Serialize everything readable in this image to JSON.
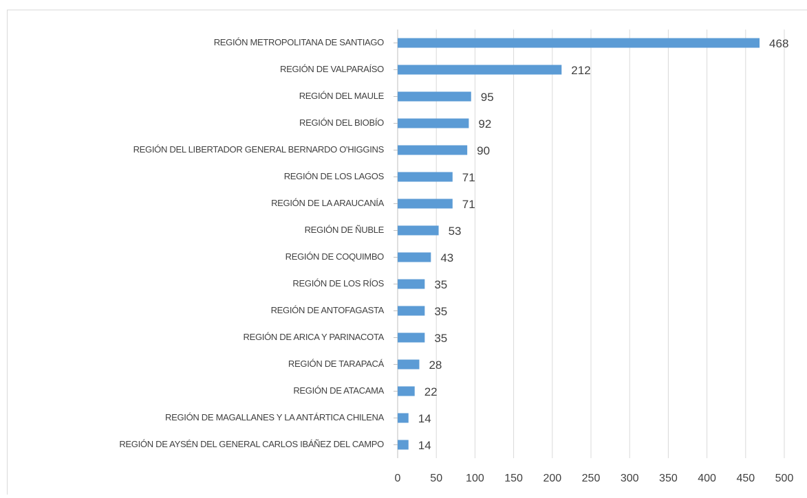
{
  "chart_data": {
    "type": "bar",
    "orientation": "horizontal",
    "categories": [
      "REGIÓN METROPOLITANA DE SANTIAGO",
      "REGIÓN DE VALPARAÍSO",
      "REGIÓN DEL MAULE",
      "REGIÓN DEL BIOBÍO",
      "REGIÓN DEL LIBERTADOR GENERAL BERNARDO O'HIGGINS",
      "REGIÓN DE LOS LAGOS",
      "REGIÓN DE LA ARAUCANÍA",
      "REGIÓN DE ÑUBLE",
      "REGIÓN DE COQUIMBO",
      "REGIÓN DE LOS RÍOS",
      "REGIÓN DE ANTOFAGASTA",
      "REGIÓN DE ARICA Y PARINACOTA",
      "REGIÓN DE TARAPACÁ",
      "REGIÓN DE ATACAMA",
      "REGIÓN DE MAGALLANES Y LA ANTÁRTICA CHILENA",
      "REGIÓN DE AYSÉN DEL GENERAL CARLOS IBÁÑEZ DEL CAMPO"
    ],
    "values": [
      468,
      212,
      95,
      92,
      90,
      71,
      71,
      53,
      43,
      35,
      35,
      35,
      28,
      22,
      14,
      14
    ],
    "color": "#5b9bd5",
    "xlim": [
      0,
      500
    ],
    "xticks": [
      0,
      50,
      100,
      150,
      200,
      250,
      300,
      350,
      400,
      450,
      500
    ],
    "grid": true
  }
}
